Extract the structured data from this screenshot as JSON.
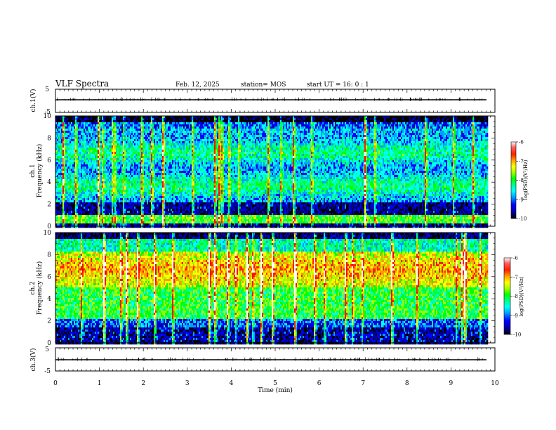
{
  "header": {
    "title": "VLF Spectra",
    "date": "Feb. 12, 2025",
    "station": "station= MOS",
    "start": "start  UT  =   16: 0  : 1"
  },
  "colors": {
    "spectrogram_scale": [
      "#000000",
      "#0000a0",
      "#0000ff",
      "#00a0ff",
      "#00ffff",
      "#00ff80",
      "#00ff00",
      "#a0ff00",
      "#ffff00",
      "#ffa000",
      "#ff2000",
      "#ff0000",
      "#ffffff"
    ]
  },
  "chart_data": [
    {
      "type": "line",
      "name": "ch1-waveform",
      "ylabel": "ch.1(V)",
      "ylim": [
        -5,
        5
      ],
      "yticks": [
        5,
        -5
      ],
      "xlim": [
        0,
        10
      ],
      "baseline": 0,
      "note_series": "near-constant trace with sparse small spikes"
    },
    {
      "type": "heatmap",
      "name": "ch1-spectrogram",
      "ylabel": "ch.1\nFrequency (kHz)",
      "ylabel_line1": "ch.1",
      "ylabel_line2": "Frequency (kHz)",
      "ylim": [
        0,
        10
      ],
      "yticks": [
        0,
        2,
        4,
        6,
        8,
        10
      ],
      "xlim": [
        0,
        10
      ],
      "data_end_min": 9.85,
      "colorbar": {
        "label": "log(PSD)(V²/Hz)",
        "min": -10,
        "max": -6,
        "ticks": [
          -6,
          -7,
          -8,
          -9,
          -10
        ]
      }
    },
    {
      "type": "heatmap",
      "name": "ch2-spectrogram",
      "ylabel_line1": "ch.2",
      "ylabel_line2": "Frequency (kHz)",
      "ylim": [
        0,
        10
      ],
      "yticks": [
        0,
        2,
        4,
        6,
        8,
        10
      ],
      "xlim": [
        0,
        10
      ],
      "data_end_min": 9.85,
      "colorbar": {
        "label": "log(PSD)(V²/Hz)",
        "min": -10,
        "max": -6,
        "ticks": [
          -6,
          -7,
          -8,
          -9,
          -10
        ]
      }
    },
    {
      "type": "line",
      "name": "ch3-waveform",
      "ylabel": "ch.3(V)",
      "ylim": [
        -5,
        5
      ],
      "yticks": [
        5,
        -5
      ],
      "xlim": [
        0,
        10
      ],
      "baseline": 0
    }
  ],
  "xaxis": {
    "label": "Time  (min)",
    "ticks": [
      0,
      1,
      2,
      3,
      4,
      5,
      6,
      7,
      8,
      9,
      10
    ]
  }
}
